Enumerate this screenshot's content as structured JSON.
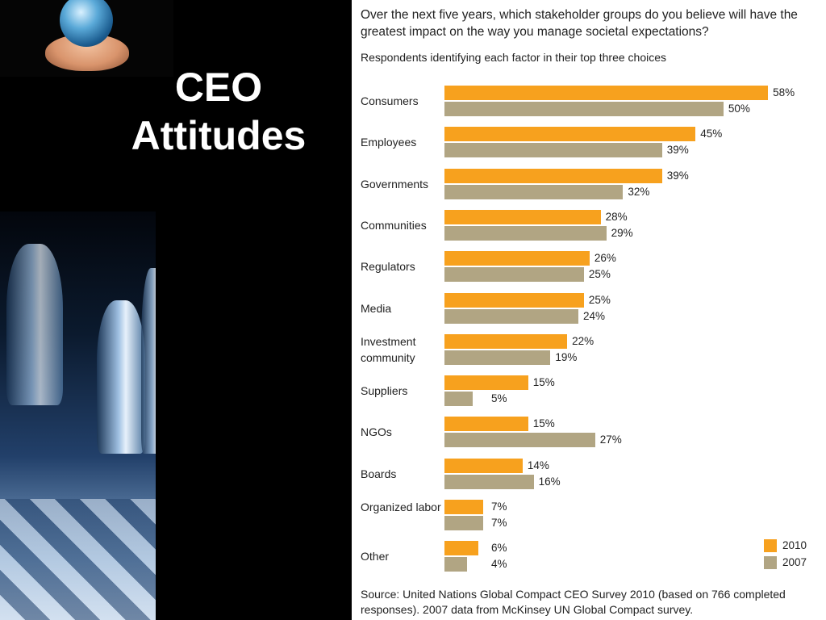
{
  "slide": {
    "title": "CEO Attitudes"
  },
  "colors": {
    "series_2010": "#f7a11e",
    "series_2007": "#b1a583",
    "background": "#000000"
  },
  "icons": {
    "logo": "globe-in-hands-icon",
    "decoration": "chess-pieces-image"
  },
  "chart_data": {
    "type": "bar",
    "orientation": "horizontal",
    "title": "Over the next five years, which stakeholder groups do you believe will have the greatest impact on the way you manage societal expectations?",
    "subtitle": "Respondents identifying each factor in their top three choices",
    "categories": [
      "Consumers",
      "Employees",
      "Governments",
      "Communities",
      "Regulators",
      "Media",
      "Investment community",
      "Suppliers",
      "NGOs",
      "Boards",
      "Organized labor",
      "Other"
    ],
    "series": [
      {
        "name": "2010",
        "values": [
          58,
          45,
          39,
          28,
          26,
          25,
          22,
          15,
          15,
          14,
          7,
          6
        ]
      },
      {
        "name": "2007",
        "values": [
          50,
          39,
          32,
          29,
          25,
          24,
          19,
          5,
          27,
          16,
          7,
          4
        ]
      }
    ],
    "value_suffix": "%",
    "xlim": [
      0,
      60
    ],
    "legend": "bottom-right",
    "grid": false,
    "source": "Source: United Nations Global Compact CEO Survey 2010 (based on 766 completed responses). 2007 data from McKinsey UN Global Compact survey."
  }
}
